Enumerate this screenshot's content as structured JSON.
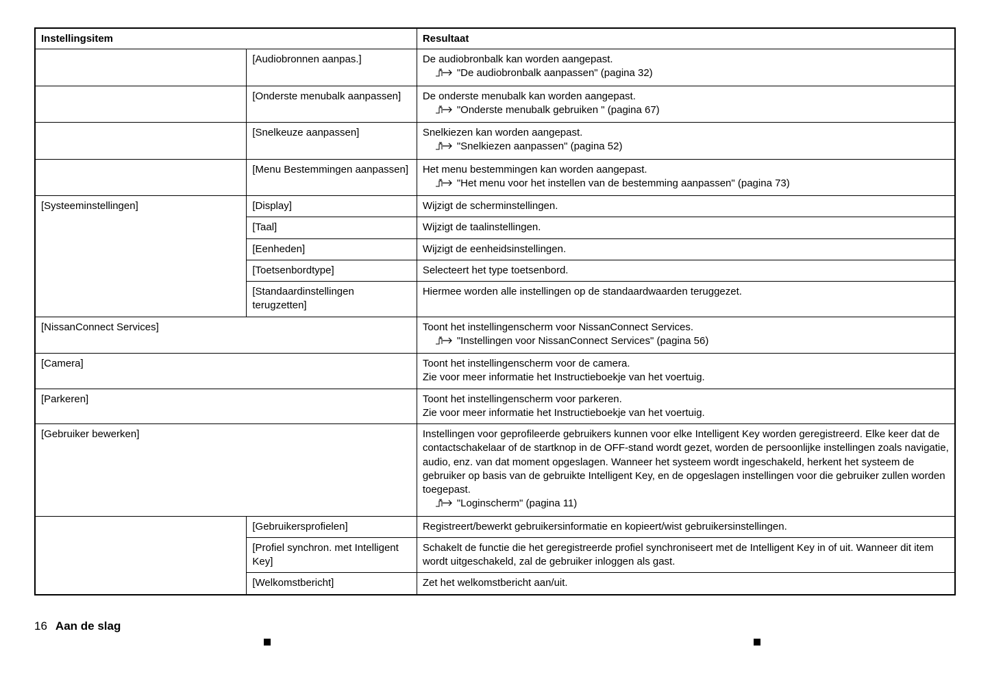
{
  "header": {
    "col1": "Instellingsitem",
    "col3": "Resultaat"
  },
  "rows": [
    {
      "c1": "",
      "c2": "[Audiobronnen aanpas.]",
      "c3_text": "De audiobronbalk kan worden aangepast.",
      "c3_ref": "\"De audiobronbalk aanpassen\" (pagina 32)"
    },
    {
      "c1": "",
      "c2": "[Onderste menubalk aanpassen]",
      "c3_text": "De onderste menubalk kan worden aangepast.",
      "c3_ref": "\"Onderste menubalk gebruiken \" (pagina 67)"
    },
    {
      "c1": "",
      "c2": "[Snelkeuze aanpassen]",
      "c3_text": "Snelkiezen kan worden aangepast.",
      "c3_ref": "\"Snelkiezen aanpassen\" (pagina 52)"
    },
    {
      "c1": "",
      "c2": "[Menu Bestemmingen aanpassen]",
      "c3_text": "Het menu bestemmingen kan worden aangepast.",
      "c3_ref": "\"Het menu voor het instellen van de bestemming aanpassen\" (pagina 73)"
    },
    {
      "c1": "[Systeeminstellingen]",
      "c1_rowspan": 5,
      "c2": "[Display]",
      "c3_text": "Wijzigt de scherminstellingen."
    },
    {
      "c2": "[Taal]",
      "c3_text": "Wijzigt de taalinstellingen."
    },
    {
      "c2": "[Eenheden]",
      "c3_text": "Wijzigt de eenheidsinstellingen."
    },
    {
      "c2": "[Toetsenbordtype]",
      "c3_text": "Selecteert het type toetsenbord."
    },
    {
      "c2": "[Standaardinstellingen terugzetten]",
      "c3_text": "Hiermee worden alle instellingen op de standaardwaarden teruggezet."
    },
    {
      "c1": "[NissanConnect Services]",
      "c1_colspan": 2,
      "c3_text": "Toont het instellingenscherm voor NissanConnect Services.",
      "c3_ref": "\"Instellingen voor NissanConnect Services\" (pagina 56)"
    },
    {
      "c1": "[Camera]",
      "c1_colspan": 2,
      "c3_text": "Toont het instellingenscherm voor de camera.\nZie voor meer informatie het Instructieboekje van het voertuig."
    },
    {
      "c1": "[Parkeren]",
      "c1_colspan": 2,
      "c3_text": "Toont het instellingenscherm voor parkeren.\nZie voor meer informatie het Instructieboekje van het voertuig."
    },
    {
      "c1": "[Gebruiker bewerken]",
      "c1_colspan": 2,
      "c3_text": "Instellingen voor geprofileerde gebruikers kunnen voor elke Intelligent Key worden geregistreerd. Elke keer dat de contactschakelaar of de startknop in de OFF-stand wordt gezet, worden de persoonlijke instellingen zoals navigatie, audio, enz. van dat moment opgeslagen. Wanneer het systeem wordt ingeschakeld, herkent het systeem de gebruiker op basis van de gebruikte Intelligent Key, en de opgeslagen instellingen voor die gebruiker zullen worden toegepast.",
      "c3_ref": "\"Loginscherm\" (pagina 11)"
    },
    {
      "c1": "",
      "c1_rowspan": 3,
      "c2": "[Gebruikersprofielen]",
      "c3_text": "Registreert/bewerkt gebruikersinformatie en kopieert/wist gebruikersinstellingen."
    },
    {
      "c2": "[Profiel synchron. met Intelligent Key]",
      "c3_text": "Schakelt de functie die het geregistreerde profiel synchroniseert met de Intelligent Key in of uit. Wanneer dit item wordt uitgeschakeld, zal de gebruiker inloggen als gast."
    },
    {
      "c2": "[Welkomstbericht]",
      "c3_text": "Zet het welkomstbericht aan/uit."
    }
  ],
  "footer": {
    "page": "16",
    "title": "Aan de slag"
  }
}
